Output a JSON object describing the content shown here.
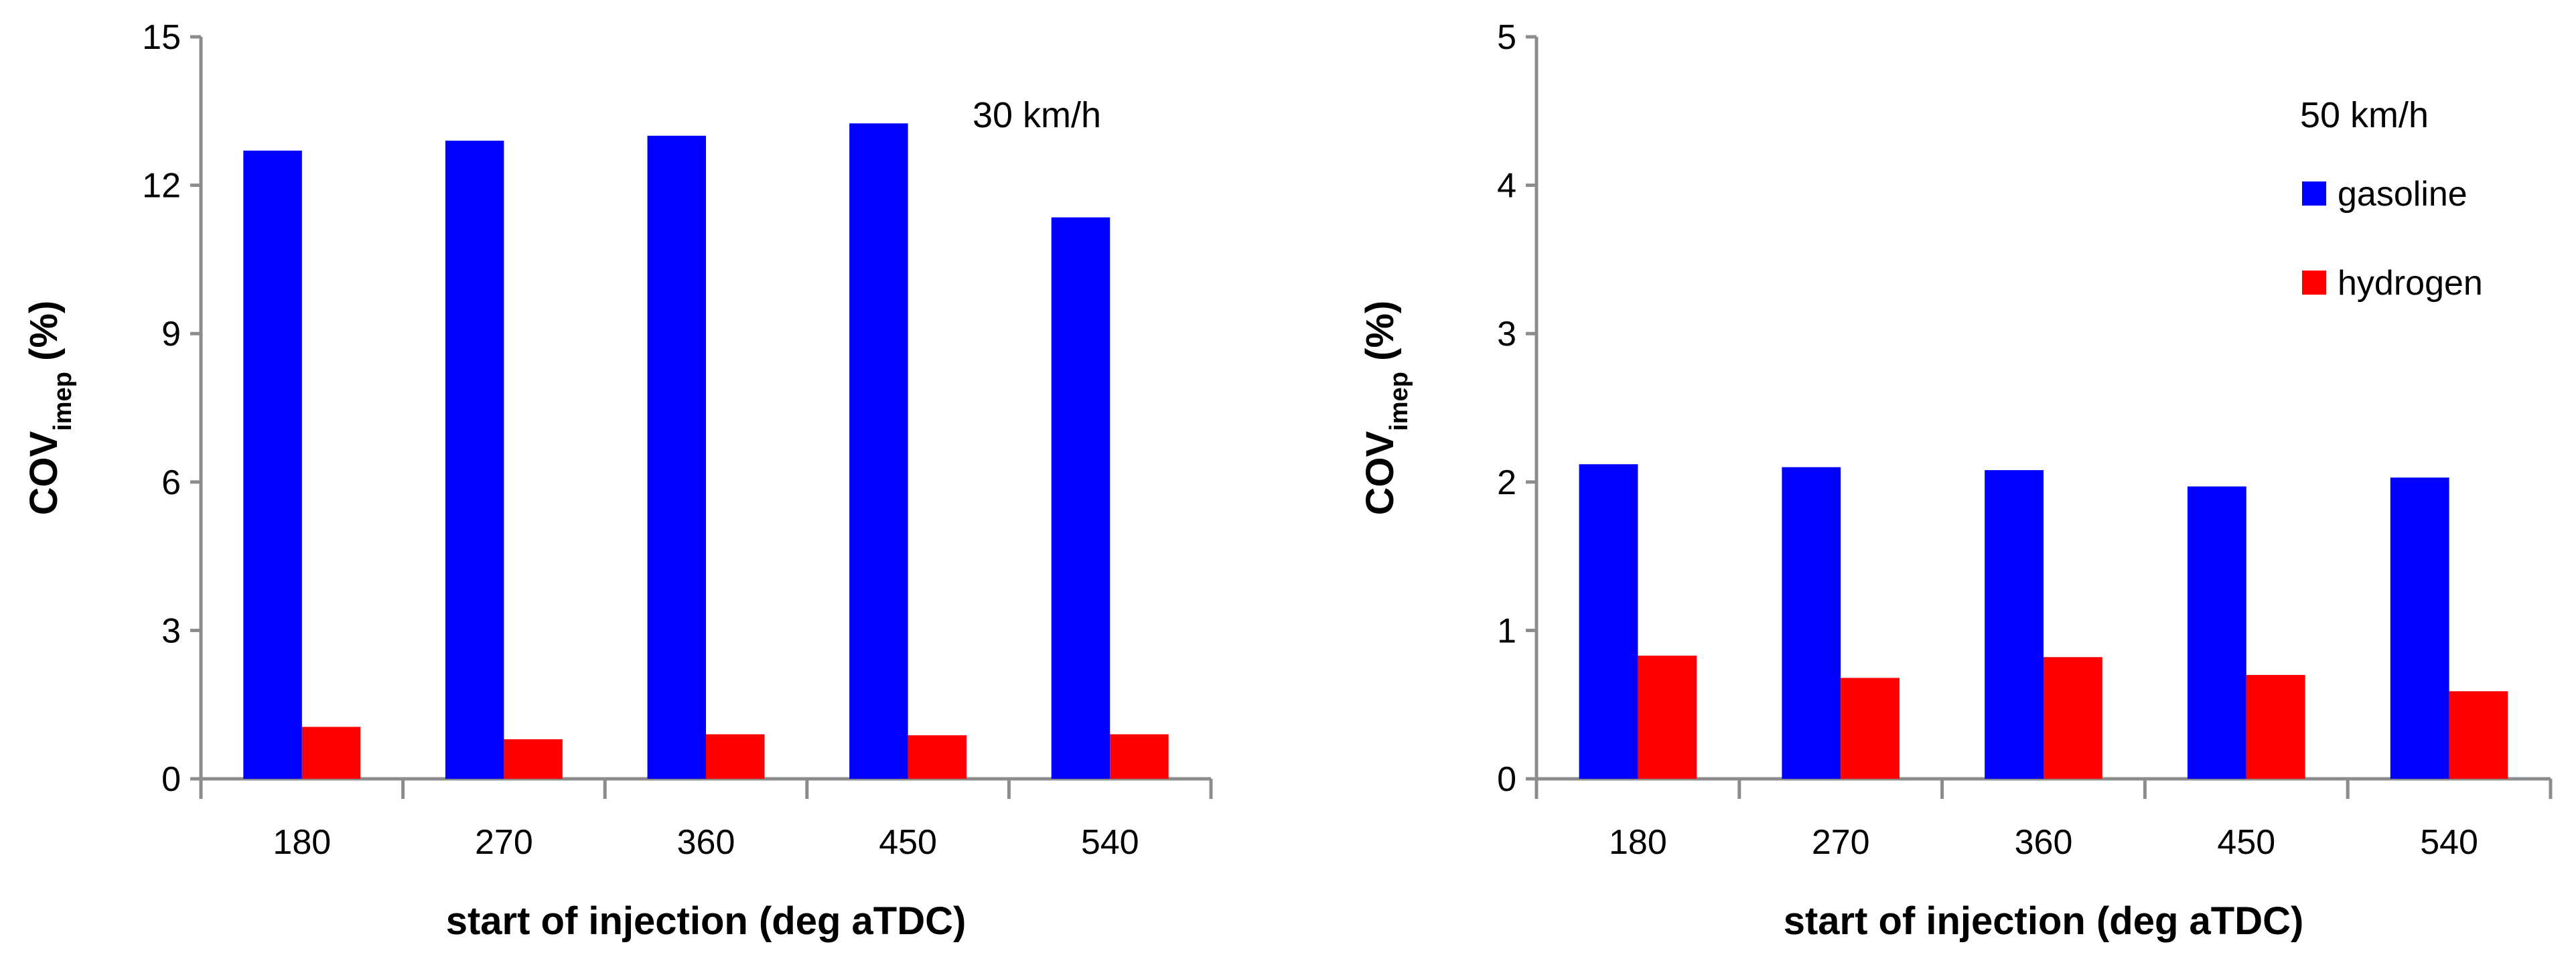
{
  "chart_data": [
    {
      "type": "bar",
      "annotation": "30 km/h",
      "xlabel": "start of injection (deg aTDC)",
      "ylabel_main": "COV",
      "ylabel_sub": "imep",
      "ylabel_unit": " (%)",
      "categories": [
        "180",
        "270",
        "360",
        "450",
        "540"
      ],
      "ylim": [
        0,
        15
      ],
      "yticks": [
        0,
        3,
        6,
        9,
        12,
        15
      ],
      "series": [
        {
          "name": "gasoline",
          "color": "#0000ff",
          "values": [
            12.7,
            12.9,
            13.0,
            13.25,
            11.35
          ]
        },
        {
          "name": "hydrogen",
          "color": "#ff0000",
          "values": [
            1.05,
            0.8,
            0.9,
            0.88,
            0.9
          ]
        }
      ],
      "show_legend": false
    },
    {
      "type": "bar",
      "annotation": "50 km/h",
      "xlabel": "start of injection (deg aTDC)",
      "ylabel_main": "COV",
      "ylabel_sub": "imep",
      "ylabel_unit": " (%)",
      "categories": [
        "180",
        "270",
        "360",
        "450",
        "540"
      ],
      "ylim": [
        0,
        5
      ],
      "yticks": [
        0,
        1,
        2,
        3,
        4,
        5
      ],
      "series": [
        {
          "name": "gasoline",
          "color": "#0000ff",
          "values": [
            2.12,
            2.1,
            2.08,
            1.97,
            2.03
          ]
        },
        {
          "name": "hydrogen",
          "color": "#ff0000",
          "values": [
            0.83,
            0.68,
            0.82,
            0.7,
            0.59
          ]
        }
      ],
      "show_legend": true,
      "legend_position": "top-right"
    }
  ]
}
